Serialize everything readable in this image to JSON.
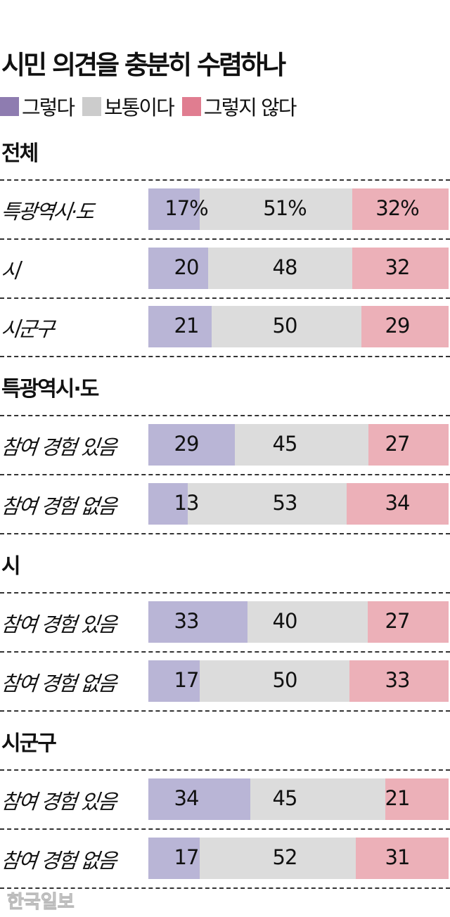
{
  "chart_data": {
    "type": "bar",
    "orientation": "horizontal-stacked-100",
    "title": "시민 의견을 충분히 수렴하나",
    "legend": [
      {
        "name": "그렇다",
        "color": "#8e7cb0"
      },
      {
        "name": "보통이다",
        "color": "#cccccc"
      },
      {
        "name": "그렇지 않다",
        "color": "#e07d90"
      }
    ],
    "segment_colors": [
      "#b9b5d6",
      "#dcdcdc",
      "#ecb0b8"
    ],
    "unit_suffix_first_row": "%",
    "groups": [
      {
        "name": "전체",
        "rows": [
          {
            "label": "특광역시·도",
            "values": [
              17,
              51,
              32
            ]
          },
          {
            "label": "시",
            "values": [
              20,
              48,
              32
            ]
          },
          {
            "label": "시군구",
            "values": [
              21,
              50,
              29
            ]
          }
        ]
      },
      {
        "name": "특광역시·도",
        "rows": [
          {
            "label": "참여 경험 있음",
            "values": [
              29,
              45,
              27
            ]
          },
          {
            "label": "참여 경험 없음",
            "values": [
              13,
              53,
              34
            ]
          }
        ]
      },
      {
        "name": "시",
        "rows": [
          {
            "label": "참여 경험 있음",
            "values": [
              33,
              40,
              27
            ]
          },
          {
            "label": "참여 경험 없음",
            "values": [
              17,
              50,
              33
            ]
          }
        ]
      },
      {
        "name": "시군구",
        "rows": [
          {
            "label": "참여 경험 있음",
            "values": [
              34,
              45,
              21
            ]
          },
          {
            "label": "참여 경험 없음",
            "values": [
              17,
              52,
              31
            ]
          }
        ]
      }
    ]
  },
  "source_logo": "한국일보"
}
